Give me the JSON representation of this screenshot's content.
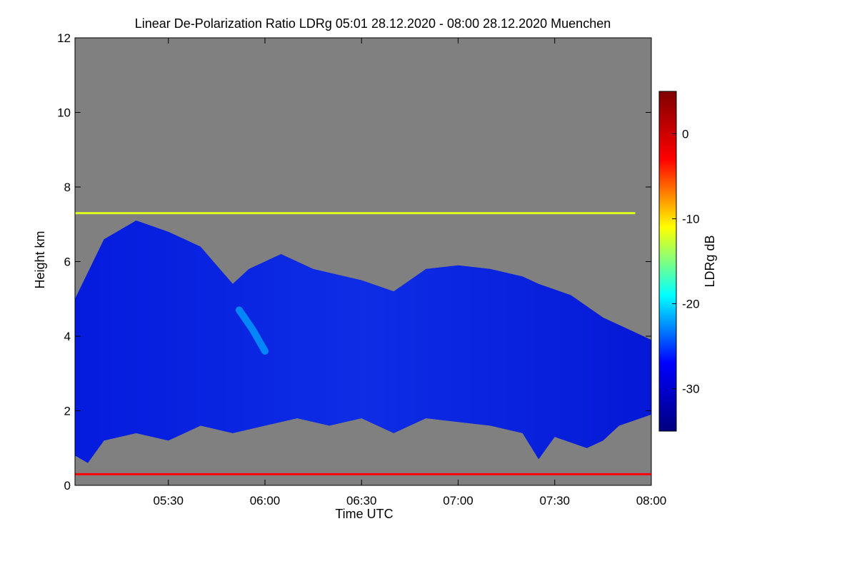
{
  "chart_data": {
    "type": "heatmap",
    "title": "Linear De-Polarization Ratio LDRg   05:01 28.12.2020 - 08:00 28.12.2020 Muenchen",
    "xlabel": "Time UTC",
    "ylabel": "Height km",
    "colorbar_label": "LDRg dB",
    "x_range": [
      "05:01",
      "08:00"
    ],
    "x_ticks": [
      "05:30",
      "06:00",
      "06:30",
      "07:00",
      "07:30",
      "08:00"
    ],
    "y_range": [
      0,
      12
    ],
    "y_ticks": [
      "0",
      "2",
      "4",
      "6",
      "8",
      "10",
      "12"
    ],
    "colorbar_range": [
      -35,
      5
    ],
    "colorbar_ticks": [
      "0",
      "-10",
      "-20",
      "-30"
    ],
    "colormap": [
      "#00007f",
      "#0000ff",
      "#00ffff",
      "#ffff00",
      "#ff0000",
      "#7f0000"
    ],
    "background_color": "#808080",
    "cloud_layer": {
      "typical_ldr_db": -30,
      "top_km": [
        [
          "05:01",
          5.0
        ],
        [
          "05:10",
          6.6
        ],
        [
          "05:20",
          7.1
        ],
        [
          "05:30",
          6.8
        ],
        [
          "05:40",
          6.4
        ],
        [
          "05:50",
          5.4
        ],
        [
          "05:55",
          5.8
        ],
        [
          "06:05",
          6.2
        ],
        [
          "06:15",
          5.8
        ],
        [
          "06:30",
          5.5
        ],
        [
          "06:40",
          5.2
        ],
        [
          "06:50",
          5.8
        ],
        [
          "07:00",
          5.9
        ],
        [
          "07:10",
          5.8
        ],
        [
          "07:20",
          5.6
        ],
        [
          "07:25",
          5.4
        ],
        [
          "07:35",
          5.1
        ],
        [
          "07:45",
          4.5
        ],
        [
          "07:55",
          4.1
        ],
        [
          "08:00",
          3.9
        ]
      ],
      "base_km": [
        [
          "05:01",
          0.8
        ],
        [
          "05:05",
          0.6
        ],
        [
          "05:10",
          1.2
        ],
        [
          "05:20",
          1.4
        ],
        [
          "05:30",
          1.2
        ],
        [
          "05:40",
          1.6
        ],
        [
          "05:50",
          1.4
        ],
        [
          "06:00",
          1.6
        ],
        [
          "06:10",
          1.8
        ],
        [
          "06:20",
          1.6
        ],
        [
          "06:30",
          1.8
        ],
        [
          "06:40",
          1.4
        ],
        [
          "06:50",
          1.8
        ],
        [
          "07:00",
          1.7
        ],
        [
          "07:10",
          1.6
        ],
        [
          "07:20",
          1.4
        ],
        [
          "07:25",
          0.7
        ],
        [
          "07:30",
          1.3
        ],
        [
          "07:40",
          1.0
        ],
        [
          "07:45",
          1.2
        ],
        [
          "07:50",
          1.6
        ],
        [
          "08:00",
          1.9
        ]
      ]
    },
    "bright_band": {
      "typical_ldr_db": -22,
      "points": [
        [
          "05:52",
          4.7
        ],
        [
          "05:56",
          4.2
        ],
        [
          "06:00",
          3.6
        ]
      ]
    },
    "horizontal_lines": [
      {
        "height_km": 7.3,
        "ldr_db": -12,
        "from": "05:01",
        "to": "07:55"
      },
      {
        "height_km": 0.3,
        "ldr_db": -3,
        "from": "05:01",
        "to": "08:00"
      }
    ]
  }
}
